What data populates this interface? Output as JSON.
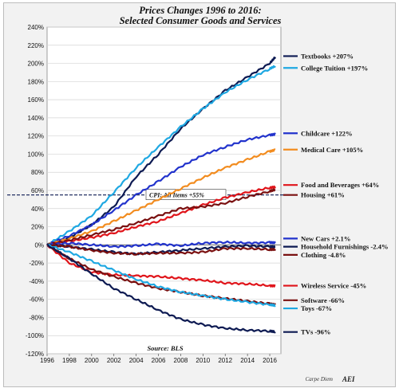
{
  "chart_data": {
    "type": "line",
    "title": "Prices Changes 1996 to 2016:",
    "subtitle": "Selected Consumer Goods and Services",
    "xlabel": "",
    "ylabel": "",
    "xlim": [
      1996,
      2017
    ],
    "ylim": [
      -120,
      240
    ],
    "x_ticks": [
      "1996",
      "1998",
      "2000",
      "2002",
      "2004",
      "2006",
      "2008",
      "2010",
      "2012",
      "2014",
      "2016"
    ],
    "y_ticks": [
      "240%",
      "220%",
      "200%",
      "180%",
      "160%",
      "140%",
      "120%",
      "100%",
      "80%",
      "60%",
      "40%",
      "20%",
      "0%",
      "-20%",
      "-40%",
      "-60%",
      "-80%",
      "-100%",
      "-120%"
    ],
    "grid": "horizontal",
    "legend": "labels at line ends, right",
    "reference_line": {
      "label": "CPI: All Items +55%",
      "value": 55
    },
    "source": "Source: BLS",
    "credit": "Carpe Diem",
    "logo": "AEI",
    "series": [
      {
        "name": "Textbooks +207%",
        "color": "#0d1a52",
        "label_y": 208,
        "points": [
          [
            1996,
            0
          ],
          [
            1998,
            8
          ],
          [
            2000,
            22
          ],
          [
            2002,
            42
          ],
          [
            2004,
            75
          ],
          [
            2006,
            100
          ],
          [
            2008,
            128
          ],
          [
            2010,
            150
          ],
          [
            2012,
            170
          ],
          [
            2014,
            185
          ],
          [
            2016,
            200
          ],
          [
            2016.5,
            207
          ]
        ]
      },
      {
        "name": "College Tuition +197%",
        "color": "#1fa8e2",
        "label_y": 195,
        "points": [
          [
            1996,
            0
          ],
          [
            1998,
            15
          ],
          [
            2000,
            32
          ],
          [
            2002,
            58
          ],
          [
            2004,
            85
          ],
          [
            2006,
            108
          ],
          [
            2008,
            130
          ],
          [
            2010,
            150
          ],
          [
            2012,
            168
          ],
          [
            2014,
            182
          ],
          [
            2016,
            194
          ],
          [
            2016.5,
            197
          ]
        ]
      },
      {
        "name": "Childcare +122%",
        "color": "#2233cc",
        "label_y": 123,
        "points": [
          [
            1996,
            0
          ],
          [
            1998,
            10
          ],
          [
            2000,
            22
          ],
          [
            2002,
            38
          ],
          [
            2004,
            55
          ],
          [
            2006,
            70
          ],
          [
            2008,
            86
          ],
          [
            2010,
            99
          ],
          [
            2012,
            108
          ],
          [
            2014,
            116
          ],
          [
            2016,
            121
          ],
          [
            2016.5,
            122
          ]
        ]
      },
      {
        "name": "Medical Care +105%",
        "color": "#f28c1f",
        "label_y": 105,
        "points": [
          [
            1996,
            0
          ],
          [
            1998,
            7
          ],
          [
            2000,
            15
          ],
          [
            2002,
            26
          ],
          [
            2004,
            38
          ],
          [
            2006,
            50
          ],
          [
            2008,
            62
          ],
          [
            2010,
            74
          ],
          [
            2012,
            85
          ],
          [
            2014,
            94
          ],
          [
            2016,
            103
          ],
          [
            2016.5,
            105
          ]
        ]
      },
      {
        "name": "Food and Beverages +64%",
        "color": "#e0141a",
        "label_y": 66,
        "points": [
          [
            1996,
            0
          ],
          [
            1998,
            4
          ],
          [
            2000,
            8
          ],
          [
            2002,
            13
          ],
          [
            2004,
            20
          ],
          [
            2006,
            26
          ],
          [
            2008,
            35
          ],
          [
            2010,
            44
          ],
          [
            2012,
            52
          ],
          [
            2014,
            58
          ],
          [
            2016,
            63
          ],
          [
            2016.5,
            64
          ]
        ]
      },
      {
        "name": "Housing +61%",
        "color": "#7a1010",
        "label_y": 55,
        "points": [
          [
            1996,
            0
          ],
          [
            1998,
            5
          ],
          [
            2000,
            11
          ],
          [
            2002,
            17
          ],
          [
            2004,
            24
          ],
          [
            2006,
            32
          ],
          [
            2008,
            40
          ],
          [
            2010,
            42
          ],
          [
            2012,
            46
          ],
          [
            2014,
            53
          ],
          [
            2016,
            59
          ],
          [
            2016.5,
            61
          ]
        ]
      },
      {
        "name": "New Cars +2.1%",
        "color": "#2233cc",
        "label_y": 7,
        "points": [
          [
            1996,
            0
          ],
          [
            1998,
            2
          ],
          [
            2000,
            0
          ],
          [
            2002,
            -2
          ],
          [
            2004,
            -1
          ],
          [
            2006,
            1
          ],
          [
            2008,
            -1
          ],
          [
            2010,
            2
          ],
          [
            2012,
            3
          ],
          [
            2014,
            2
          ],
          [
            2016,
            2.5
          ],
          [
            2016.5,
            2.1
          ]
        ]
      },
      {
        "name": "Household Furnishings -2.4%",
        "color": "#0d1a52",
        "label_y": -2,
        "points": [
          [
            1996,
            0
          ],
          [
            1998,
            -2
          ],
          [
            2000,
            -5
          ],
          [
            2002,
            -8
          ],
          [
            2004,
            -10
          ],
          [
            2006,
            -8
          ],
          [
            2008,
            -6
          ],
          [
            2010,
            -4
          ],
          [
            2012,
            -2
          ],
          [
            2014,
            -1
          ],
          [
            2016,
            -2
          ],
          [
            2016.5,
            -2.4
          ]
        ]
      },
      {
        "name": "Clothing -4.8%",
        "color": "#7a1010",
        "label_y": -11,
        "points": [
          [
            1996,
            0
          ],
          [
            1998,
            -2
          ],
          [
            2000,
            -6
          ],
          [
            2002,
            -9
          ],
          [
            2004,
            -10
          ],
          [
            2006,
            -9
          ],
          [
            2008,
            -9
          ],
          [
            2010,
            -8
          ],
          [
            2012,
            -4
          ],
          [
            2014,
            -4
          ],
          [
            2016,
            -5
          ],
          [
            2016.5,
            -4.8
          ]
        ]
      },
      {
        "name": "Wireless Service -45%",
        "color": "#e0141a",
        "label_y": -45,
        "points": [
          [
            1996,
            0
          ],
          [
            1998,
            -20
          ],
          [
            2000,
            -30
          ],
          [
            2002,
            -33
          ],
          [
            2004,
            -34
          ],
          [
            2006,
            -35
          ],
          [
            2008,
            -37
          ],
          [
            2010,
            -39
          ],
          [
            2012,
            -42
          ],
          [
            2014,
            -43
          ],
          [
            2016,
            -45
          ],
          [
            2016.5,
            -45
          ]
        ]
      },
      {
        "name": "Software -66%",
        "color": "#7a1010",
        "label_y": -61,
        "points": [
          [
            1996,
            0
          ],
          [
            1998,
            -15
          ],
          [
            2000,
            -27
          ],
          [
            2002,
            -35
          ],
          [
            2004,
            -42
          ],
          [
            2006,
            -48
          ],
          [
            2008,
            -52
          ],
          [
            2010,
            -56
          ],
          [
            2012,
            -59
          ],
          [
            2014,
            -62
          ],
          [
            2016,
            -65
          ],
          [
            2016.5,
            -66
          ]
        ]
      },
      {
        "name": "Toys -67%",
        "color": "#1fa8e2",
        "label_y": -70,
        "points": [
          [
            1996,
            0
          ],
          [
            1998,
            -8
          ],
          [
            2000,
            -18
          ],
          [
            2002,
            -28
          ],
          [
            2004,
            -38
          ],
          [
            2006,
            -46
          ],
          [
            2008,
            -52
          ],
          [
            2010,
            -56
          ],
          [
            2012,
            -60
          ],
          [
            2014,
            -63
          ],
          [
            2016,
            -66
          ],
          [
            2016.5,
            -67
          ]
        ]
      },
      {
        "name": "TVs -96%",
        "color": "#0d1a52",
        "label_y": -96,
        "points": [
          [
            1996,
            0
          ],
          [
            1998,
            -15
          ],
          [
            2000,
            -32
          ],
          [
            2002,
            -48
          ],
          [
            2004,
            -60
          ],
          [
            2006,
            -72
          ],
          [
            2008,
            -82
          ],
          [
            2010,
            -88
          ],
          [
            2012,
            -92
          ],
          [
            2014,
            -94
          ],
          [
            2016,
            -95
          ],
          [
            2016.5,
            -96
          ]
        ]
      }
    ]
  }
}
